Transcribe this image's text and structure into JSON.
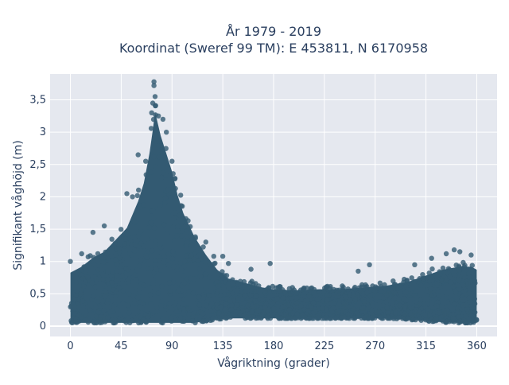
{
  "chart_data": {
    "type": "scatter",
    "title_line1": "År 1979 - 2019",
    "title_line2": "Koordinat (Sweref 99 TM): E 453811, N 6170958",
    "xlabel": "Vågriktning (grader)",
    "ylabel": "Signifikant våghöjd (m)",
    "xlim": [
      -18,
      378
    ],
    "ylim": [
      -0.16,
      3.9
    ],
    "xticks": [
      0,
      45,
      90,
      135,
      180,
      225,
      270,
      315,
      360
    ],
    "xtick_labels": [
      "0",
      "45",
      "90",
      "135",
      "180",
      "225",
      "270",
      "315",
      "360"
    ],
    "yticks": [
      0,
      0.5,
      1,
      1.5,
      2,
      2.5,
      3,
      3.5
    ],
    "ytick_labels": [
      "0",
      "0,5",
      "1",
      "1,5",
      "2",
      "2,5",
      "3",
      "3,5"
    ],
    "grid": true,
    "marker_color": "#335a72",
    "envelope": {
      "x": [
        0,
        10,
        20,
        30,
        40,
        50,
        60,
        65,
        70,
        73,
        75,
        80,
        85,
        90,
        95,
        100,
        110,
        120,
        130,
        140,
        150,
        160,
        170,
        180,
        200,
        220,
        240,
        260,
        280,
        300,
        315,
        330,
        345,
        355,
        360
      ],
      "y_max": [
        0.9,
        1.0,
        1.15,
        1.25,
        1.45,
        1.65,
        2.1,
        2.4,
        2.9,
        3.3,
        3.6,
        3.2,
        2.9,
        2.6,
        2.2,
        1.9,
        1.5,
        1.2,
        0.95,
        0.8,
        0.75,
        0.7,
        0.65,
        0.62,
        0.6,
        0.62,
        0.62,
        0.65,
        0.68,
        0.75,
        0.85,
        0.95,
        1.0,
        1.0,
        0.95
      ],
      "y_min": [
        0.05,
        0.05,
        0.05,
        0.05,
        0.05,
        0.05,
        0.05,
        0.05,
        0.05,
        0.05,
        0.05,
        0.05,
        0.05,
        0.05,
        0.05,
        0.05,
        0.05,
        0.08,
        0.1,
        0.12,
        0.12,
        0.12,
        0.12,
        0.12,
        0.12,
        0.12,
        0.12,
        0.12,
        0.12,
        0.1,
        0.08,
        0.06,
        0.05,
        0.05,
        0.05
      ]
    },
    "outliers": [
      {
        "x": 74,
        "y": 3.78
      },
      {
        "x": 74,
        "y": 3.72
      },
      {
        "x": 75,
        "y": 3.55
      },
      {
        "x": 73,
        "y": 3.45
      },
      {
        "x": 72,
        "y": 3.3
      },
      {
        "x": 78,
        "y": 3.25
      },
      {
        "x": 82,
        "y": 3.2
      },
      {
        "x": 85,
        "y": 3.0
      },
      {
        "x": 90,
        "y": 2.55
      },
      {
        "x": 60,
        "y": 2.65
      },
      {
        "x": 55,
        "y": 2.0
      },
      {
        "x": 50,
        "y": 2.05
      },
      {
        "x": 30,
        "y": 1.55
      },
      {
        "x": 20,
        "y": 1.45
      },
      {
        "x": 10,
        "y": 1.12
      },
      {
        "x": 0,
        "y": 1.0
      },
      {
        "x": 120,
        "y": 1.3
      },
      {
        "x": 127,
        "y": 1.08
      },
      {
        "x": 135,
        "y": 1.08
      },
      {
        "x": 140,
        "y": 0.97
      },
      {
        "x": 160,
        "y": 0.88
      },
      {
        "x": 177,
        "y": 0.97
      },
      {
        "x": 255,
        "y": 0.85
      },
      {
        "x": 265,
        "y": 0.95
      },
      {
        "x": 305,
        "y": 0.95
      },
      {
        "x": 320,
        "y": 1.05
      },
      {
        "x": 333,
        "y": 1.12
      },
      {
        "x": 340,
        "y": 1.18
      },
      {
        "x": 345,
        "y": 1.15
      },
      {
        "x": 355,
        "y": 1.1
      }
    ]
  }
}
